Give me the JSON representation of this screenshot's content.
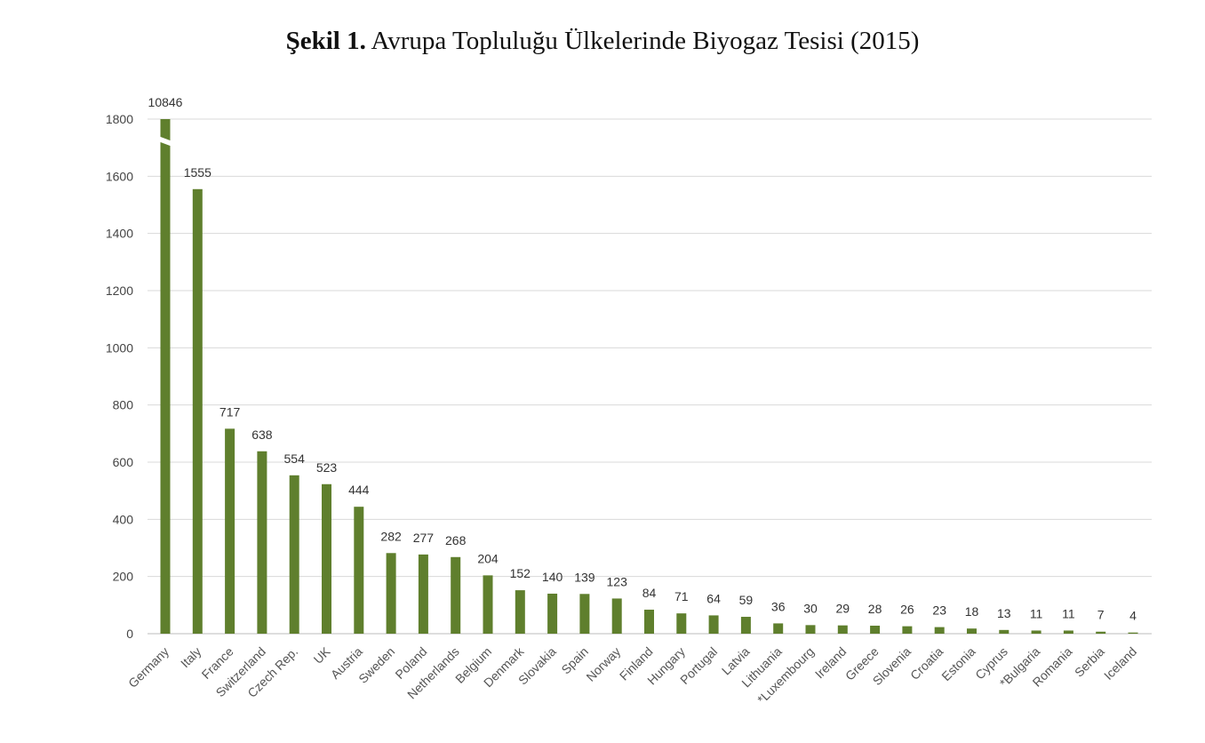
{
  "figure": {
    "label": "Şekil 1.",
    "title": "Avrupa Topluluğu Ülkelerinde Biyogaz Tesisi (2015)"
  },
  "chart_data": {
    "type": "bar",
    "title": "Şekil 1. Avrupa Topluluğu Ülkelerinde Biyogaz Tesisi (2015)",
    "xlabel": "",
    "ylabel": "",
    "ylim": [
      0,
      1800
    ],
    "yticks": [
      0,
      200,
      400,
      600,
      800,
      1000,
      1200,
      1400,
      1600,
      1800
    ],
    "grid": true,
    "axis_break": {
      "category": "Germany",
      "note": "bar truncated at axis max"
    },
    "bar_color": "#5f7f2d",
    "categories": [
      "Germany",
      "Italy",
      "France",
      "Switzerland",
      "Czech Rep.",
      "UK",
      "Austria",
      "Sweden",
      "Poland",
      "Netherlands",
      "Belgium",
      "Denmark",
      "Slovakia",
      "Spain",
      "Norway",
      "Finland",
      "Hungary",
      "Portugal",
      "Latvia",
      "Lithuania",
      "*Luxembourg",
      "Ireland",
      "Greece",
      "Slovenia",
      "Croatia",
      "Estonia",
      "Cyprus",
      "*Bulgaria",
      "Romania",
      "Serbia",
      "Iceland"
    ],
    "values": [
      10846,
      1555,
      717,
      638,
      554,
      523,
      444,
      282,
      277,
      268,
      204,
      152,
      140,
      139,
      123,
      84,
      71,
      64,
      59,
      36,
      30,
      29,
      28,
      26,
      23,
      18,
      13,
      11,
      11,
      7,
      4
    ]
  }
}
